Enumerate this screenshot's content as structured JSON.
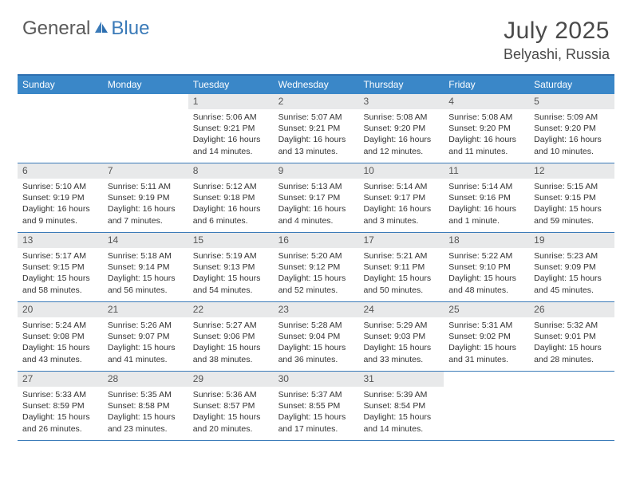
{
  "brand": {
    "part1": "General",
    "part2": "Blue"
  },
  "title": "July 2025",
  "location": "Belyashi, Russia",
  "dayHeaders": [
    "Sunday",
    "Monday",
    "Tuesday",
    "Wednesday",
    "Thursday",
    "Friday",
    "Saturday"
  ],
  "colors": {
    "headerBar": "#3a87c8",
    "ruleLine": "#3a7ab8",
    "daynumBg": "#e8e9ea",
    "text": "#333333",
    "titleText": "#4a4a4a",
    "brandGray": "#5a5a5a",
    "brandBlue": "#3a7ab8",
    "background": "#ffffff"
  },
  "typography": {
    "title_fontsize": 30,
    "location_fontsize": 18,
    "dayheader_fontsize": 12,
    "daynum_fontsize": 12,
    "cell_fontsize": 10.5
  },
  "layout": {
    "columns": 7,
    "weeks": 5
  },
  "weeks": [
    [
      {
        "empty": true
      },
      {
        "empty": true
      },
      {
        "day": "1",
        "sunrise": "Sunrise: 5:06 AM",
        "sunset": "Sunset: 9:21 PM",
        "daylight": "Daylight: 16 hours and 14 minutes."
      },
      {
        "day": "2",
        "sunrise": "Sunrise: 5:07 AM",
        "sunset": "Sunset: 9:21 PM",
        "daylight": "Daylight: 16 hours and 13 minutes."
      },
      {
        "day": "3",
        "sunrise": "Sunrise: 5:08 AM",
        "sunset": "Sunset: 9:20 PM",
        "daylight": "Daylight: 16 hours and 12 minutes."
      },
      {
        "day": "4",
        "sunrise": "Sunrise: 5:08 AM",
        "sunset": "Sunset: 9:20 PM",
        "daylight": "Daylight: 16 hours and 11 minutes."
      },
      {
        "day": "5",
        "sunrise": "Sunrise: 5:09 AM",
        "sunset": "Sunset: 9:20 PM",
        "daylight": "Daylight: 16 hours and 10 minutes."
      }
    ],
    [
      {
        "day": "6",
        "sunrise": "Sunrise: 5:10 AM",
        "sunset": "Sunset: 9:19 PM",
        "daylight": "Daylight: 16 hours and 9 minutes."
      },
      {
        "day": "7",
        "sunrise": "Sunrise: 5:11 AM",
        "sunset": "Sunset: 9:19 PM",
        "daylight": "Daylight: 16 hours and 7 minutes."
      },
      {
        "day": "8",
        "sunrise": "Sunrise: 5:12 AM",
        "sunset": "Sunset: 9:18 PM",
        "daylight": "Daylight: 16 hours and 6 minutes."
      },
      {
        "day": "9",
        "sunrise": "Sunrise: 5:13 AM",
        "sunset": "Sunset: 9:17 PM",
        "daylight": "Daylight: 16 hours and 4 minutes."
      },
      {
        "day": "10",
        "sunrise": "Sunrise: 5:14 AM",
        "sunset": "Sunset: 9:17 PM",
        "daylight": "Daylight: 16 hours and 3 minutes."
      },
      {
        "day": "11",
        "sunrise": "Sunrise: 5:14 AM",
        "sunset": "Sunset: 9:16 PM",
        "daylight": "Daylight: 16 hours and 1 minute."
      },
      {
        "day": "12",
        "sunrise": "Sunrise: 5:15 AM",
        "sunset": "Sunset: 9:15 PM",
        "daylight": "Daylight: 15 hours and 59 minutes."
      }
    ],
    [
      {
        "day": "13",
        "sunrise": "Sunrise: 5:17 AM",
        "sunset": "Sunset: 9:15 PM",
        "daylight": "Daylight: 15 hours and 58 minutes."
      },
      {
        "day": "14",
        "sunrise": "Sunrise: 5:18 AM",
        "sunset": "Sunset: 9:14 PM",
        "daylight": "Daylight: 15 hours and 56 minutes."
      },
      {
        "day": "15",
        "sunrise": "Sunrise: 5:19 AM",
        "sunset": "Sunset: 9:13 PM",
        "daylight": "Daylight: 15 hours and 54 minutes."
      },
      {
        "day": "16",
        "sunrise": "Sunrise: 5:20 AM",
        "sunset": "Sunset: 9:12 PM",
        "daylight": "Daylight: 15 hours and 52 minutes."
      },
      {
        "day": "17",
        "sunrise": "Sunrise: 5:21 AM",
        "sunset": "Sunset: 9:11 PM",
        "daylight": "Daylight: 15 hours and 50 minutes."
      },
      {
        "day": "18",
        "sunrise": "Sunrise: 5:22 AM",
        "sunset": "Sunset: 9:10 PM",
        "daylight": "Daylight: 15 hours and 48 minutes."
      },
      {
        "day": "19",
        "sunrise": "Sunrise: 5:23 AM",
        "sunset": "Sunset: 9:09 PM",
        "daylight": "Daylight: 15 hours and 45 minutes."
      }
    ],
    [
      {
        "day": "20",
        "sunrise": "Sunrise: 5:24 AM",
        "sunset": "Sunset: 9:08 PM",
        "daylight": "Daylight: 15 hours and 43 minutes."
      },
      {
        "day": "21",
        "sunrise": "Sunrise: 5:26 AM",
        "sunset": "Sunset: 9:07 PM",
        "daylight": "Daylight: 15 hours and 41 minutes."
      },
      {
        "day": "22",
        "sunrise": "Sunrise: 5:27 AM",
        "sunset": "Sunset: 9:06 PM",
        "daylight": "Daylight: 15 hours and 38 minutes."
      },
      {
        "day": "23",
        "sunrise": "Sunrise: 5:28 AM",
        "sunset": "Sunset: 9:04 PM",
        "daylight": "Daylight: 15 hours and 36 minutes."
      },
      {
        "day": "24",
        "sunrise": "Sunrise: 5:29 AM",
        "sunset": "Sunset: 9:03 PM",
        "daylight": "Daylight: 15 hours and 33 minutes."
      },
      {
        "day": "25",
        "sunrise": "Sunrise: 5:31 AM",
        "sunset": "Sunset: 9:02 PM",
        "daylight": "Daylight: 15 hours and 31 minutes."
      },
      {
        "day": "26",
        "sunrise": "Sunrise: 5:32 AM",
        "sunset": "Sunset: 9:01 PM",
        "daylight": "Daylight: 15 hours and 28 minutes."
      }
    ],
    [
      {
        "day": "27",
        "sunrise": "Sunrise: 5:33 AM",
        "sunset": "Sunset: 8:59 PM",
        "daylight": "Daylight: 15 hours and 26 minutes."
      },
      {
        "day": "28",
        "sunrise": "Sunrise: 5:35 AM",
        "sunset": "Sunset: 8:58 PM",
        "daylight": "Daylight: 15 hours and 23 minutes."
      },
      {
        "day": "29",
        "sunrise": "Sunrise: 5:36 AM",
        "sunset": "Sunset: 8:57 PM",
        "daylight": "Daylight: 15 hours and 20 minutes."
      },
      {
        "day": "30",
        "sunrise": "Sunrise: 5:37 AM",
        "sunset": "Sunset: 8:55 PM",
        "daylight": "Daylight: 15 hours and 17 minutes."
      },
      {
        "day": "31",
        "sunrise": "Sunrise: 5:39 AM",
        "sunset": "Sunset: 8:54 PM",
        "daylight": "Daylight: 15 hours and 14 minutes."
      },
      {
        "empty": true
      },
      {
        "empty": true
      }
    ]
  ]
}
